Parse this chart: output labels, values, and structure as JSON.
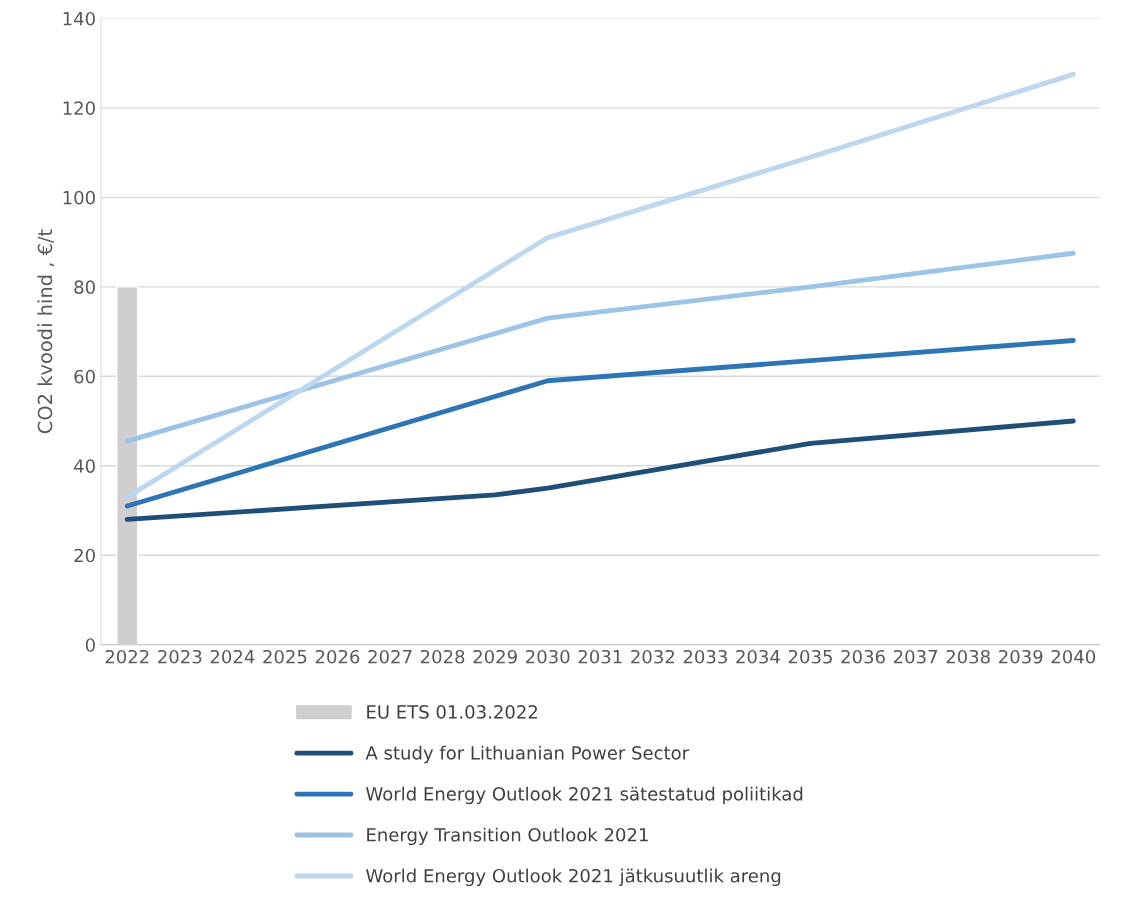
{
  "chart_data": {
    "type": "line",
    "ylabel": "CO2 kvoodi hind , €/t",
    "xlim": [
      2021.5,
      2040.5
    ],
    "xticks": [
      2022,
      2023,
      2024,
      2025,
      2026,
      2027,
      2028,
      2029,
      2030,
      2031,
      2032,
      2033,
      2034,
      2035,
      2036,
      2037,
      2038,
      2039,
      2040
    ],
    "ylim": [
      0,
      140
    ],
    "yticks": [
      0,
      20,
      40,
      60,
      80,
      100,
      120,
      140
    ],
    "grid": "y",
    "legend": "bottom",
    "marker": "none",
    "line_style": "solid",
    "series": [
      {
        "name": "EU ETS 01.03.2022",
        "type": "bar",
        "color": "#d0cece",
        "x": [
          2022
        ],
        "values": [
          80
        ]
      },
      {
        "name": "A study for Lithuanian Power Sector",
        "color": "#1f4e79",
        "x": [
          2022,
          2029,
          2030,
          2035,
          2040
        ],
        "values": [
          28,
          33.5,
          35,
          45,
          50
        ]
      },
      {
        "name": "World Energy Outlook 2021 sätestatud poliitikad",
        "color": "#2e75b6",
        "x": [
          2022,
          2030,
          2035,
          2040
        ],
        "values": [
          31,
          59,
          63.5,
          68
        ]
      },
      {
        "name": "Energy Transition Outlook 2021",
        "color": "#9dc3e6",
        "x": [
          2022,
          2030,
          2035,
          2040
        ],
        "values": [
          45.5,
          73,
          80,
          87.5
        ]
      },
      {
        "name": "World Energy Outlook 2021 jätkusuutlik areng",
        "color": "#bdd7ee",
        "x": [
          2022,
          2030,
          2035,
          2040
        ],
        "values": [
          33,
          91,
          109,
          127.5
        ]
      }
    ]
  }
}
